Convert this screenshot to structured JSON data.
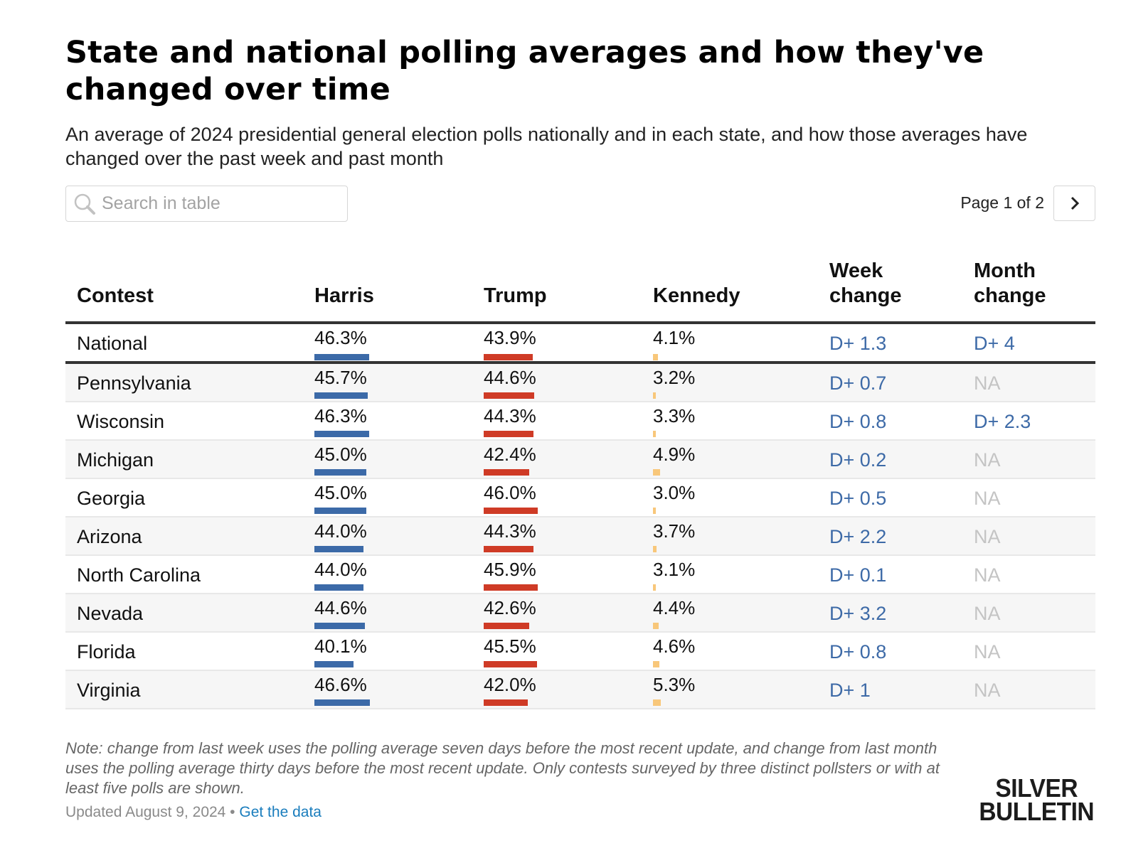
{
  "header": {
    "title": "State and national polling averages and how they've changed over time",
    "subtitle": "An average of 2024 presidential general election polls nationally and in each state, and how those averages have changed over the past week and past month"
  },
  "search": {
    "placeholder": "Search in table",
    "value": "",
    "icon": "search-icon"
  },
  "pagination": {
    "label": "Page 1 of 2",
    "current_page": 1,
    "total_pages": 2,
    "next_icon": "chevron-right-icon"
  },
  "colors": {
    "harris": "#3c6aa8",
    "trump": "#cf3b26",
    "kennedy": "#f8c77a",
    "change_dem": "#3d6aa7",
    "na": "#c4c4c4",
    "link": "#1a7dbd"
  },
  "table": {
    "columns": [
      "Contest",
      "Harris",
      "Trump",
      "Kennedy",
      "Week\nchange",
      "Month\nchange"
    ],
    "column_labels": {
      "contest": "Contest",
      "harris": "Harris",
      "trump": "Trump",
      "kennedy": "Kennedy",
      "week": [
        "Week",
        "change"
      ],
      "month": [
        "Month",
        "change"
      ]
    },
    "rows": [
      {
        "contest": "National",
        "harris": "46.3%",
        "trump": "43.9%",
        "kennedy": "4.1%",
        "week_change": "D+ 1.3",
        "month_change": "D+ 4"
      },
      {
        "contest": "Pennsylvania",
        "harris": "45.7%",
        "trump": "44.6%",
        "kennedy": "3.2%",
        "week_change": "D+ 0.7",
        "month_change": "NA"
      },
      {
        "contest": "Wisconsin",
        "harris": "46.3%",
        "trump": "44.3%",
        "kennedy": "3.3%",
        "week_change": "D+ 0.8",
        "month_change": "D+ 2.3"
      },
      {
        "contest": "Michigan",
        "harris": "45.0%",
        "trump": "42.4%",
        "kennedy": "4.9%",
        "week_change": "D+ 0.2",
        "month_change": "NA"
      },
      {
        "contest": "Georgia",
        "harris": "45.0%",
        "trump": "46.0%",
        "kennedy": "3.0%",
        "week_change": "D+ 0.5",
        "month_change": "NA"
      },
      {
        "contest": "Arizona",
        "harris": "44.0%",
        "trump": "44.3%",
        "kennedy": "3.7%",
        "week_change": "D+ 2.2",
        "month_change": "NA"
      },
      {
        "contest": "North Carolina",
        "harris": "44.0%",
        "trump": "45.9%",
        "kennedy": "3.1%",
        "week_change": "D+ 0.1",
        "month_change": "NA"
      },
      {
        "contest": "Nevada",
        "harris": "44.6%",
        "trump": "42.6%",
        "kennedy": "4.4%",
        "week_change": "D+ 3.2",
        "month_change": "NA"
      },
      {
        "contest": "Florida",
        "harris": "40.1%",
        "trump": "45.5%",
        "kennedy": "4.6%",
        "week_change": "D+ 0.8",
        "month_change": "NA"
      },
      {
        "contest": "Virginia",
        "harris": "46.6%",
        "trump": "42.0%",
        "kennedy": "5.3%",
        "week_change": "D+ 1",
        "month_change": "NA"
      }
    ]
  },
  "footer": {
    "note": "Note: change from last week uses the polling average seven days before the most recent update, and change from last month uses the polling average thirty days before the most recent update. Only contests surveyed by three distinct pollsters or with at least five polls are shown.",
    "updated": "Updated August 9, 2024 • ",
    "get_data_link": "Get the data",
    "logo_line1": "SILVER",
    "logo_line2": "BULLETIN"
  }
}
